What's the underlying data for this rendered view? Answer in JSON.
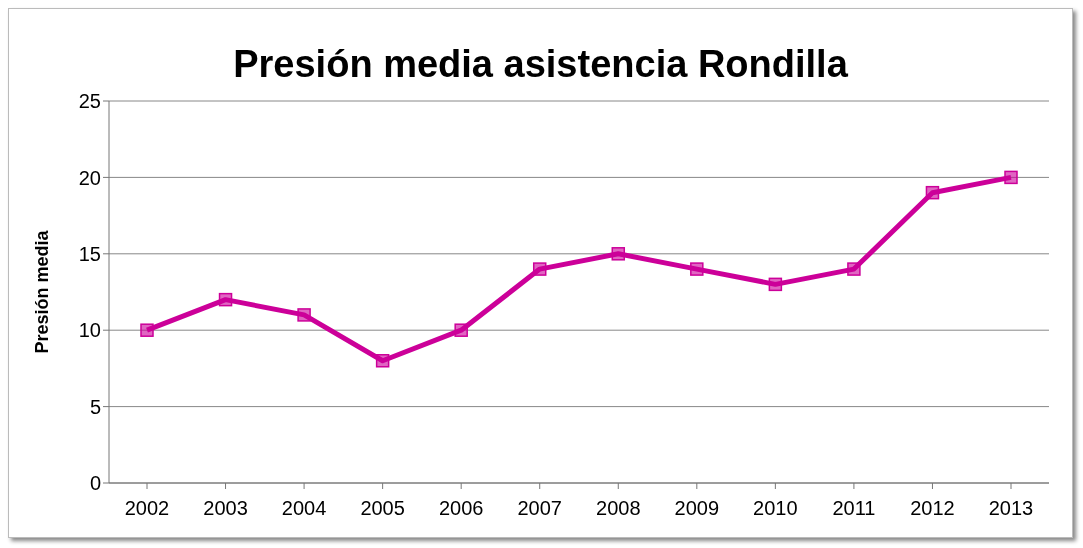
{
  "chart_data": {
    "type": "line",
    "title": "Presión media asistencia Rondilla",
    "ylabel": "Presión media",
    "categories": [
      "2002",
      "2003",
      "2004",
      "2005",
      "2006",
      "2007",
      "2008",
      "2009",
      "2010",
      "2011",
      "2012",
      "2013"
    ],
    "series": [
      {
        "color": "#cc0099",
        "values": [
          10,
          12,
          11,
          8,
          10,
          14,
          15,
          14,
          13,
          14,
          19,
          20
        ]
      }
    ],
    "ylim": [
      0,
      25
    ],
    "yticks": [
      0,
      5,
      10,
      15,
      20,
      25
    ],
    "grid": "y",
    "marker": "square",
    "line_style": "solid"
  }
}
